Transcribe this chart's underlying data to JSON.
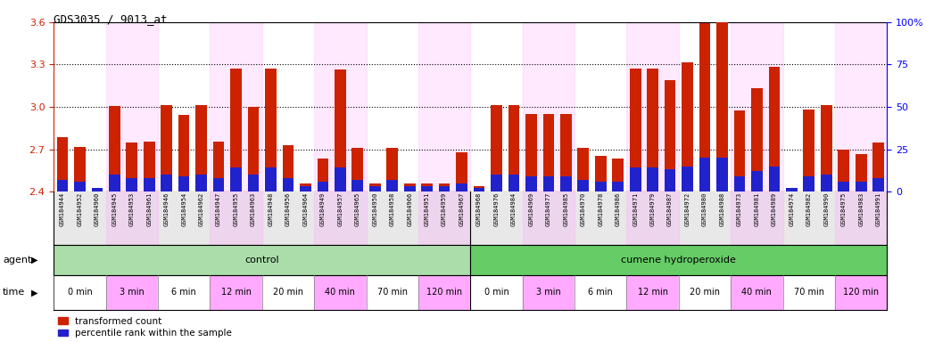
{
  "title": "GDS3035 / 9013_at",
  "samples": [
    "GSM184944",
    "GSM184952",
    "GSM184960",
    "GSM184945",
    "GSM184953",
    "GSM184961",
    "GSM184946",
    "GSM184954",
    "GSM184962",
    "GSM184947",
    "GSM184955",
    "GSM184963",
    "GSM184948",
    "GSM184956",
    "GSM184964",
    "GSM184949",
    "GSM184957",
    "GSM184965",
    "GSM184950",
    "GSM184958",
    "GSM184966",
    "GSM184951",
    "GSM184959",
    "GSM184967",
    "GSM184968",
    "GSM184976",
    "GSM184984",
    "GSM184969",
    "GSM184977",
    "GSM184985",
    "GSM184970",
    "GSM184978",
    "GSM184986",
    "GSM184971",
    "GSM184979",
    "GSM184987",
    "GSM184972",
    "GSM184980",
    "GSM184988",
    "GSM184973",
    "GSM184981",
    "GSM184989",
    "GSM184974",
    "GSM184982",
    "GSM184990",
    "GSM184975",
    "GSM184983",
    "GSM184991"
  ],
  "red_values": [
    2.785,
    2.715,
    2.415,
    3.005,
    2.745,
    2.755,
    3.01,
    2.945,
    3.01,
    2.755,
    3.27,
    3.0,
    3.27,
    2.73,
    2.455,
    2.635,
    3.265,
    2.71,
    2.455,
    2.71,
    2.455,
    2.455,
    2.455,
    2.68,
    2.435,
    3.01,
    3.01,
    2.95,
    2.95,
    2.95,
    2.71,
    2.655,
    2.635,
    3.27,
    3.27,
    3.19,
    3.315,
    3.595,
    3.615,
    2.975,
    3.13,
    3.285,
    2.415,
    2.98,
    3.01,
    2.695,
    2.665,
    2.745
  ],
  "blue_percentile": [
    7,
    6,
    2,
    10,
    8,
    8,
    10,
    9,
    10,
    8,
    14,
    10,
    14,
    8,
    3,
    6,
    14,
    7,
    3,
    7,
    3,
    3,
    3,
    5,
    2,
    10,
    10,
    9,
    9,
    9,
    7,
    6,
    6,
    14,
    14,
    13,
    15,
    20,
    20,
    9,
    12,
    15,
    2,
    9,
    10,
    6,
    6,
    8
  ],
  "ymin": 2.4,
  "ymax": 3.6,
  "y2min": 0,
  "y2max": 100,
  "yticks": [
    2.4,
    2.7,
    3.0,
    3.3,
    3.6
  ],
  "y2ticks": [
    0,
    25,
    50,
    75,
    100
  ],
  "bar_color": "#cc2200",
  "blue_color": "#2222cc",
  "bg_color_chart": "#ffffff",
  "bg_color_label": "#e8e8e8",
  "agent_control_color": "#aaddaa",
  "agent_cumene_color": "#66cc66",
  "time_odd_color": "#ffaaff",
  "time_even_color": "#ffffff",
  "time_groups": [
    {
      "label": "0 min",
      "color": "#ffffff"
    },
    {
      "label": "3 min",
      "color": "#ffaaff"
    },
    {
      "label": "6 min",
      "color": "#ffffff"
    },
    {
      "label": "12 min",
      "color": "#ffaaff"
    },
    {
      "label": "20 min",
      "color": "#ffffff"
    },
    {
      "label": "40 min",
      "color": "#ffaaff"
    },
    {
      "label": "70 min",
      "color": "#ffffff"
    },
    {
      "label": "120 min",
      "color": "#ffaaff"
    }
  ],
  "legend_red": "transformed count",
  "legend_blue": "percentile rank within the sample",
  "dotted_lines": [
    2.7,
    3.0,
    3.3
  ]
}
